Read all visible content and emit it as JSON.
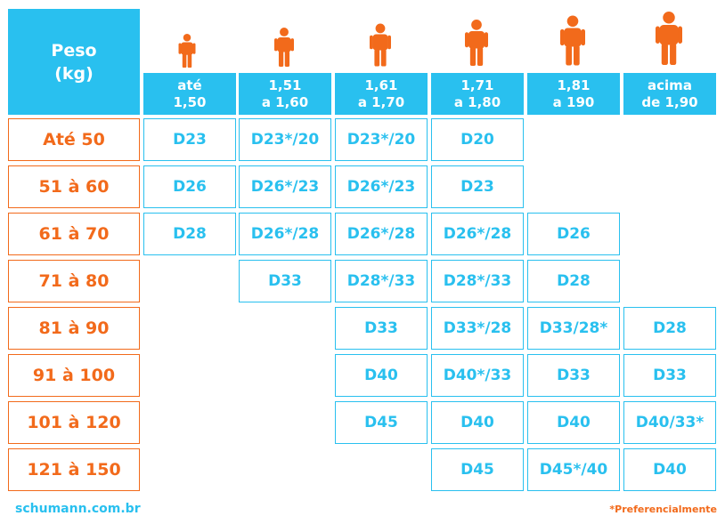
{
  "header": {
    "weight_label_line1": "Peso",
    "weight_label_line2": "(kg)"
  },
  "heights": [
    {
      "line1": "até",
      "line2": "1,50"
    },
    {
      "line1": "1,51",
      "line2": "a 1,60"
    },
    {
      "line1": "1,61",
      "line2": "a 1,70"
    },
    {
      "line1": "1,71",
      "line2": "a 1,80"
    },
    {
      "line1": "1,81",
      "line2": "a 190"
    },
    {
      "line1": "acima",
      "line2": "de 1,90"
    }
  ],
  "rows": [
    {
      "weight": "Até 50",
      "values": [
        "D23",
        "D23*/20",
        "D23*/20",
        "D20",
        "",
        ""
      ]
    },
    {
      "weight": "51 à 60",
      "values": [
        "D26",
        "D26*/23",
        "D26*/23",
        "D23",
        "",
        ""
      ]
    },
    {
      "weight": "61 à 70",
      "values": [
        "D28",
        "D26*/28",
        "D26*/28",
        "D26*/28",
        "D26",
        ""
      ]
    },
    {
      "weight": "71 à 80",
      "values": [
        "",
        "D33",
        "D28*/33",
        "D28*/33",
        "D28",
        ""
      ]
    },
    {
      "weight": "81 à 90",
      "values": [
        "",
        "",
        "D33",
        "D33*/28",
        "D33/28*",
        "D28"
      ]
    },
    {
      "weight": "91 à 100",
      "values": [
        "",
        "",
        "D40",
        "D40*/33",
        "D33",
        "D33"
      ]
    },
    {
      "weight": "101 à 120",
      "values": [
        "",
        "",
        "D45",
        "D40",
        "D40",
        "D40/33*"
      ]
    },
    {
      "weight": "121 à 150",
      "values": [
        "",
        "",
        "",
        "D45",
        "D45*/40",
        "D40"
      ]
    }
  ],
  "footer": {
    "website": "schumann.com.br",
    "note": "*Preferencialmente"
  },
  "colors": {
    "blue": "#29c0ef",
    "orange": "#f26a1b"
  },
  "icons": [
    "person-icon"
  ]
}
